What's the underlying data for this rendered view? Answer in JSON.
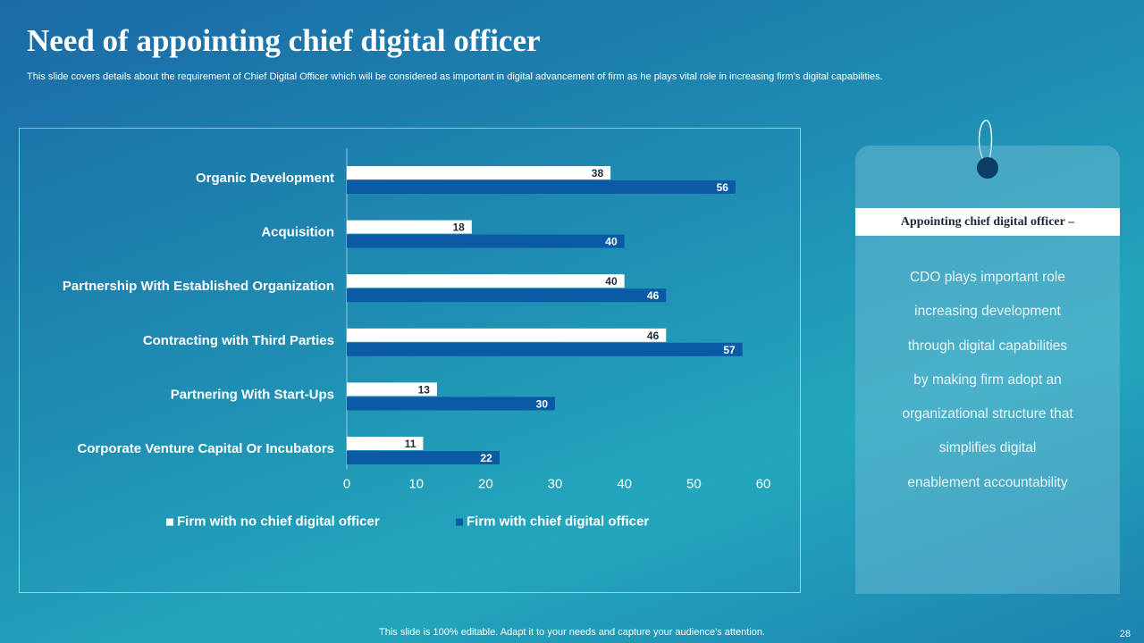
{
  "title": "Need of appointing chief digital officer",
  "subtitle": "This slide covers details about the requirement of Chief Digital Officer which will be considered as important in digital advancement of firm as he plays vital role in increasing firm’s digital capabilities.",
  "colors": {
    "series_white": "#ffffff",
    "series_blue": "#0a5aa5"
  },
  "chart_data": {
    "type": "bar",
    "orientation": "horizontal",
    "categories": [
      "Organic Development",
      "Acquisition",
      "Partnership With Established Organization",
      "Contracting with Third Parties",
      "Partnering With Start-Ups",
      "Corporate Venture Capital Or Incubators"
    ],
    "series": [
      {
        "name": "Firm with no chief digital officer",
        "values": [
          38,
          18,
          40,
          46,
          13,
          11
        ]
      },
      {
        "name": "Firm with chief digital officer",
        "values": [
          56,
          40,
          46,
          57,
          30,
          22
        ]
      }
    ],
    "xlim": [
      0,
      60
    ],
    "xticks": [
      0,
      10,
      20,
      30,
      40,
      50,
      60
    ],
    "legend": "bottom"
  },
  "tag": {
    "header": "Appointing chief digital officer –",
    "lines": [
      "CDO plays important role",
      "increasing development",
      "through digital capabilities",
      "by making firm adopt an",
      "organizational structure that",
      "simplifies digital",
      "enablement accountability"
    ]
  },
  "footer": "This slide is 100% editable. Adapt it to your needs and capture your audience's attention.",
  "page_number": "28"
}
